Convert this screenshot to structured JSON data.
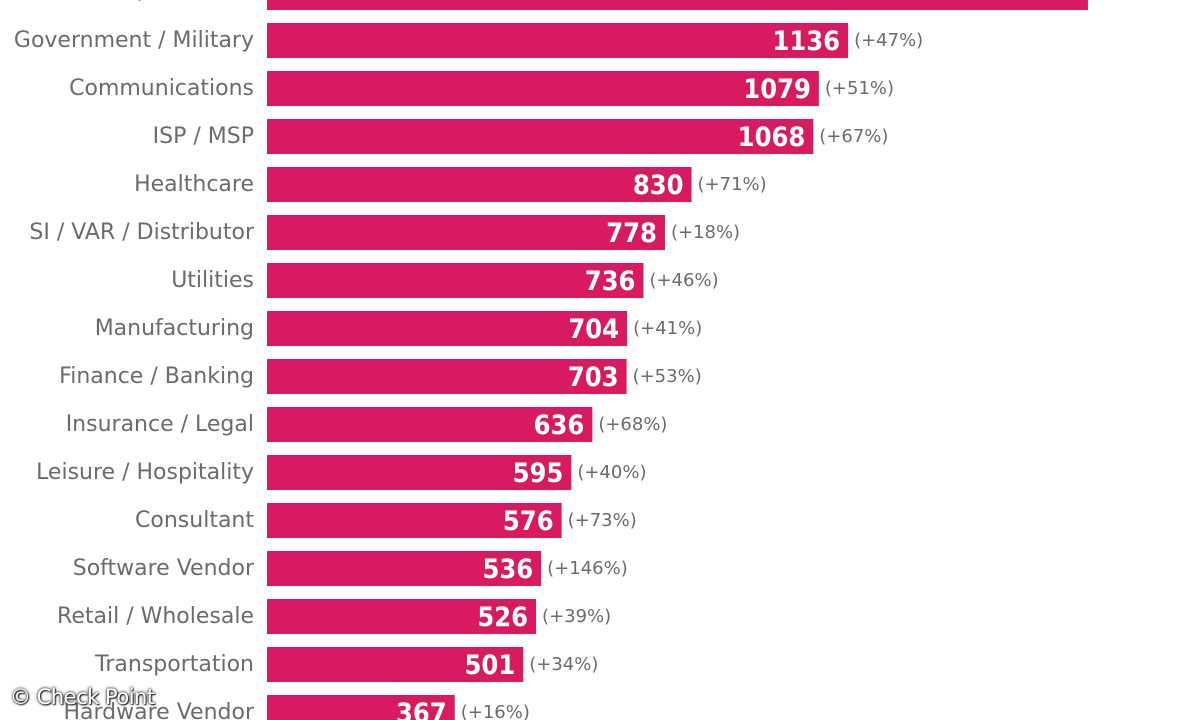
{
  "chart_data": {
    "type": "bar",
    "orientation": "horizontal",
    "categories": [
      "Education / Research",
      "Government / Military",
      "Communications",
      "ISP / MSP",
      "Healthcare",
      "SI / VAR / Distributor",
      "Utilities",
      "Manufacturing",
      "Finance / Banking",
      "Insurance / Legal",
      "Leisure / Hospitality",
      "Consultant",
      "Software Vendor",
      "Retail / Wholesale",
      "Transportation",
      "Hardware Vendor"
    ],
    "values": [
      1605,
      1136,
      1079,
      1068,
      830,
      778,
      736,
      704,
      703,
      636,
      595,
      576,
      536,
      526,
      501,
      367
    ],
    "changes": [
      "",
      "(+47%)",
      "(+51%)",
      "(+67%)",
      "(+71%)",
      "(+18%)",
      "(+46%)",
      "(+41%)",
      "(+53%)",
      "(+68%)",
      "(+40%)",
      "(+73%)",
      "(+146%)",
      "(+39%)",
      "(+34%)",
      "(+16%)"
    ],
    "value_labels": [
      "",
      "1136",
      "1079",
      "1068",
      "830",
      "778",
      "736",
      "704",
      "703",
      "636",
      "595",
      "576",
      "536",
      "526",
      "501",
      "367"
    ],
    "bar_color": "#d81b60"
  },
  "copyright": "© Check Point"
}
